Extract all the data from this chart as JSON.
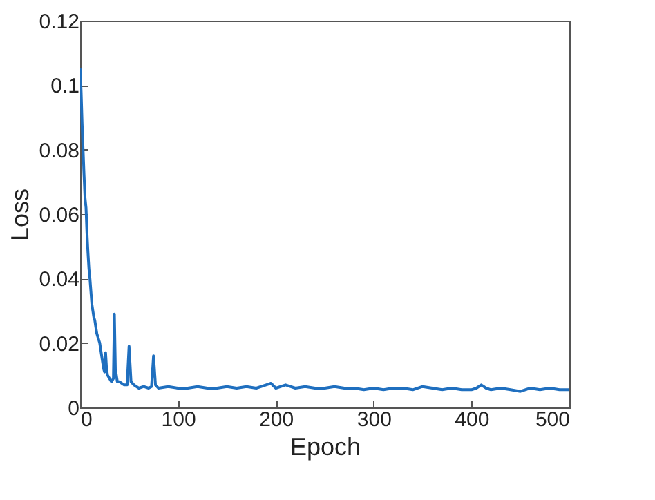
{
  "chart_data": {
    "type": "line",
    "xlabel": "Epoch",
    "ylabel": "Loss",
    "x": [
      0,
      1,
      2,
      3,
      4,
      5,
      6,
      7,
      8,
      9,
      10,
      11,
      12,
      13,
      14,
      15,
      16,
      17,
      18,
      19,
      20,
      21,
      22,
      23,
      24,
      25,
      26,
      27,
      28,
      30,
      32,
      34,
      35,
      36,
      38,
      40,
      45,
      48,
      50,
      52,
      55,
      60,
      65,
      70,
      73,
      75,
      77,
      80,
      90,
      100,
      110,
      120,
      130,
      140,
      150,
      160,
      170,
      180,
      190,
      195,
      200,
      210,
      220,
      230,
      240,
      250,
      260,
      270,
      280,
      290,
      300,
      310,
      320,
      330,
      340,
      350,
      360,
      370,
      380,
      390,
      400,
      405,
      410,
      415,
      420,
      430,
      440,
      450,
      460,
      470,
      480,
      490,
      500
    ],
    "series": [
      {
        "color": "#1f6fbf",
        "values": [
          0.105,
          0.098,
          0.088,
          0.08,
          0.072,
          0.065,
          0.062,
          0.054,
          0.048,
          0.043,
          0.04,
          0.036,
          0.032,
          0.03,
          0.028,
          0.027,
          0.025,
          0.023,
          0.022,
          0.021,
          0.02,
          0.018,
          0.016,
          0.014,
          0.012,
          0.011,
          0.017,
          0.012,
          0.01,
          0.009,
          0.008,
          0.009,
          0.029,
          0.012,
          0.008,
          0.008,
          0.007,
          0.007,
          0.019,
          0.008,
          0.007,
          0.006,
          0.0065,
          0.006,
          0.0065,
          0.016,
          0.007,
          0.006,
          0.0065,
          0.006,
          0.006,
          0.0065,
          0.006,
          0.006,
          0.0065,
          0.006,
          0.0065,
          0.006,
          0.007,
          0.0075,
          0.006,
          0.007,
          0.006,
          0.0065,
          0.006,
          0.006,
          0.0065,
          0.006,
          0.006,
          0.0055,
          0.006,
          0.0055,
          0.006,
          0.006,
          0.0055,
          0.0065,
          0.006,
          0.0055,
          0.006,
          0.0055,
          0.0055,
          0.006,
          0.007,
          0.006,
          0.0055,
          0.006,
          0.0055,
          0.005,
          0.006,
          0.0055,
          0.006,
          0.0055,
          0.0055
        ]
      }
    ],
    "xlim": [
      0,
      500
    ],
    "xticks": [
      0,
      100,
      200,
      300,
      400,
      500
    ],
    "ylim": [
      0,
      0.12
    ],
    "yticks": [
      0,
      0.02,
      0.04,
      0.06,
      0.08,
      {
        "value": 0.1,
        "label": "0.1"
      },
      0.12
    ],
    "grid": false,
    "marker": "none",
    "line_style": "solid"
  }
}
